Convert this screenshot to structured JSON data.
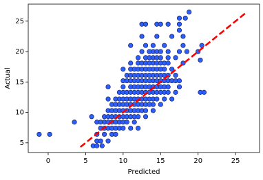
{
  "chart_data": {
    "type": "scatter",
    "x_label": "Predicted",
    "y_label": "Actual",
    "xlim": [
      -2.66,
      28.2
    ],
    "ylim": [
      3.4,
      27.8
    ],
    "xticks": [
      0,
      5,
      10,
      15,
      20,
      25
    ],
    "yticks": [
      5,
      10,
      15,
      20,
      25
    ],
    "color": "#2d5fff",
    "edge_color": "#1b2a70",
    "reference_line": {
      "x": [
        4.3,
        26.5
      ],
      "values": [
        4.3,
        26.5
      ],
      "color": "#ff0000"
    },
    "x": [
      6.0,
      6.5,
      7.2,
      6.5,
      7.0,
      8.0,
      -1.2,
      0.2,
      6.5,
      7.5,
      8.5,
      9.0,
      7.0,
      7.5,
      8.0,
      8.5,
      9.0,
      9.5,
      10.0,
      11.0,
      12.0,
      3.5,
      6.5,
      7.0,
      7.5,
      8.0,
      8.5,
      9.0,
      9.5,
      10.0,
      10.5,
      11.5,
      5.8,
      7.5,
      8.0,
      8.5,
      9.0,
      9.5,
      10.0,
      10.5,
      11.0,
      11.5,
      12.0,
      13.0,
      8.0,
      8.5,
      9.0,
      9.5,
      10.0,
      10.5,
      11.0,
      11.5,
      12.0,
      12.5,
      13.0,
      14.0,
      8.5,
      9.0,
      9.5,
      10.0,
      10.5,
      11.0,
      11.5,
      12.0,
      12.5,
      13.0,
      13.5,
      14.0,
      15.0,
      8.0,
      9.0,
      9.5,
      10.0,
      10.5,
      11.0,
      11.5,
      12.0,
      12.5,
      13.0,
      13.5,
      14.0,
      14.5,
      15.5,
      16.5,
      9.5,
      10.0,
      10.5,
      11.0,
      11.5,
      12.0,
      12.5,
      13.0,
      13.5,
      14.0,
      14.5,
      15.0,
      15.5,
      16.0,
      17.0,
      20.3,
      20.8,
      8.0,
      10.0,
      11.0,
      11.5,
      12.0,
      12.5,
      13.0,
      13.5,
      14.0,
      14.5,
      15.0,
      15.5,
      16.0,
      17.5,
      10.0,
      10.5,
      11.0,
      11.5,
      12.0,
      12.5,
      13.0,
      13.5,
      14.0,
      14.5,
      15.0,
      15.5,
      16.0,
      16.5,
      17.0,
      17.5,
      10.5,
      11.0,
      11.5,
      12.0,
      12.5,
      13.0,
      13.5,
      14.0,
      14.5,
      15.0,
      15.5,
      16.0,
      17.0,
      10.0,
      11.0,
      11.5,
      12.0,
      12.5,
      13.0,
      13.5,
      14.0,
      14.5,
      15.0,
      15.5,
      16.5,
      11.0,
      12.0,
      12.5,
      13.0,
      13.5,
      14.0,
      14.5,
      15.0,
      15.5,
      16.0,
      18.0,
      12.0,
      13.0,
      13.5,
      14.0,
      14.5,
      15.0,
      16.0,
      17.0,
      12.5,
      13.5,
      14.0,
      14.5,
      15.0,
      16.0,
      17.5,
      18.5,
      20.0,
      11.0,
      13.0,
      14.0,
      15.5,
      18.0,
      20.5,
      12.5,
      14.5,
      16.5,
      18.0,
      17.5,
      12.5,
      13.0,
      14.5,
      15.0,
      16.0,
      17.5,
      17.5,
      18.3,
      18.8,
      20.3
    ],
    "values": [
      4.5,
      4.5,
      4.5,
      5.3,
      5.3,
      5.3,
      6.4,
      6.4,
      6.4,
      6.4,
      6.4,
      6.4,
      7.4,
      7.4,
      7.4,
      7.4,
      7.4,
      7.4,
      7.4,
      7.4,
      7.4,
      8.4,
      8.4,
      8.4,
      8.4,
      8.4,
      8.4,
      8.4,
      8.4,
      8.4,
      8.4,
      8.4,
      9.3,
      9.3,
      9.3,
      9.3,
      9.3,
      9.3,
      9.3,
      9.3,
      9.3,
      9.3,
      9.3,
      9.3,
      10.3,
      10.3,
      10.3,
      10.3,
      10.3,
      10.3,
      10.3,
      10.3,
      10.3,
      10.3,
      10.3,
      10.3,
      11.3,
      11.3,
      11.3,
      11.3,
      11.3,
      11.3,
      11.3,
      11.3,
      11.3,
      11.3,
      11.3,
      11.3,
      11.3,
      12.2,
      12.2,
      12.2,
      12.2,
      12.2,
      12.2,
      12.2,
      12.2,
      12.2,
      12.2,
      12.2,
      12.2,
      12.2,
      12.2,
      12.2,
      13.3,
      13.3,
      13.3,
      13.3,
      13.3,
      13.3,
      13.3,
      13.3,
      13.3,
      13.3,
      13.3,
      13.3,
      13.3,
      13.3,
      13.3,
      13.3,
      13.3,
      14.2,
      14.2,
      14.2,
      14.2,
      14.2,
      14.2,
      14.2,
      14.2,
      14.2,
      14.2,
      14.2,
      14.2,
      14.2,
      14.2,
      15.2,
      15.2,
      15.2,
      15.2,
      15.2,
      15.2,
      15.2,
      15.2,
      15.2,
      15.2,
      15.2,
      15.2,
      15.2,
      15.2,
      15.2,
      15.2,
      16.1,
      16.1,
      16.1,
      16.1,
      16.1,
      16.1,
      16.1,
      16.1,
      16.1,
      16.1,
      16.1,
      16.1,
      16.1,
      17.1,
      17.1,
      17.1,
      17.1,
      17.1,
      17.1,
      17.1,
      17.1,
      17.1,
      17.1,
      17.1,
      17.1,
      18.1,
      18.1,
      18.1,
      18.1,
      18.1,
      18.1,
      18.1,
      18.1,
      18.1,
      18.1,
      18.1,
      19.0,
      19.0,
      19.0,
      19.0,
      19.0,
      19.0,
      19.0,
      19.0,
      20.0,
      20.0,
      20.0,
      20.0,
      20.0,
      20.0,
      20.0,
      20.0,
      20.0,
      21.0,
      21.0,
      21.0,
      21.0,
      21.0,
      21.0,
      22.5,
      22.5,
      22.5,
      22.5,
      23.5,
      24.5,
      24.5,
      24.5,
      24.5,
      24.5,
      24.5,
      25.5,
      25.5,
      26.5,
      18.6
    ]
  }
}
